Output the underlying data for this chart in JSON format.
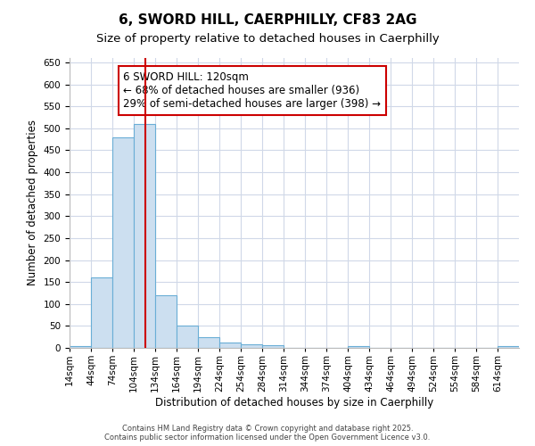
{
  "title": "6, SWORD HILL, CAERPHILLY, CF83 2AG",
  "subtitle": "Size of property relative to detached houses in Caerphilly",
  "xlabel": "Distribution of detached houses by size in Caerphilly",
  "ylabel": "Number of detached properties",
  "bin_edges": [
    14,
    44,
    74,
    104,
    134,
    164,
    194,
    224,
    254,
    284,
    314,
    344,
    374,
    404,
    434,
    464,
    494,
    524,
    554,
    584,
    614,
    644
  ],
  "bin_labels": [
    "14sqm",
    "44sqm",
    "74sqm",
    "104sqm",
    "134sqm",
    "164sqm",
    "194sqm",
    "224sqm",
    "254sqm",
    "284sqm",
    "314sqm",
    "344sqm",
    "374sqm",
    "404sqm",
    "434sqm",
    "464sqm",
    "494sqm",
    "524sqm",
    "554sqm",
    "584sqm",
    "614sqm"
  ],
  "bar_values": [
    5,
    160,
    480,
    510,
    120,
    50,
    25,
    12,
    8,
    7,
    0,
    0,
    0,
    5,
    0,
    0,
    0,
    0,
    0,
    0,
    4
  ],
  "bar_color": "#ccdff0",
  "bar_edge_color": "#6aaed6",
  "vline_x": 120,
  "vline_color": "#cc0000",
  "annotation_text": "6 SWORD HILL: 120sqm\n← 68% of detached houses are smaller (936)\n29% of semi-detached houses are larger (398) →",
  "annotation_box_color": "#ffffff",
  "annotation_box_edge": "#cc0000",
  "ylim": [
    0,
    660
  ],
  "yticks": [
    0,
    50,
    100,
    150,
    200,
    250,
    300,
    350,
    400,
    450,
    500,
    550,
    600,
    650
  ],
  "fig_bg_color": "#ffffff",
  "plot_bg_color": "#ffffff",
  "grid_color": "#d0d8e8",
  "footer1": "Contains HM Land Registry data © Crown copyright and database right 2025.",
  "footer2": "Contains public sector information licensed under the Open Government Licence v3.0.",
  "title_fontsize": 11,
  "subtitle_fontsize": 9.5,
  "label_fontsize": 8.5,
  "tick_fontsize": 7.5,
  "annotation_fontsize": 8.5
}
